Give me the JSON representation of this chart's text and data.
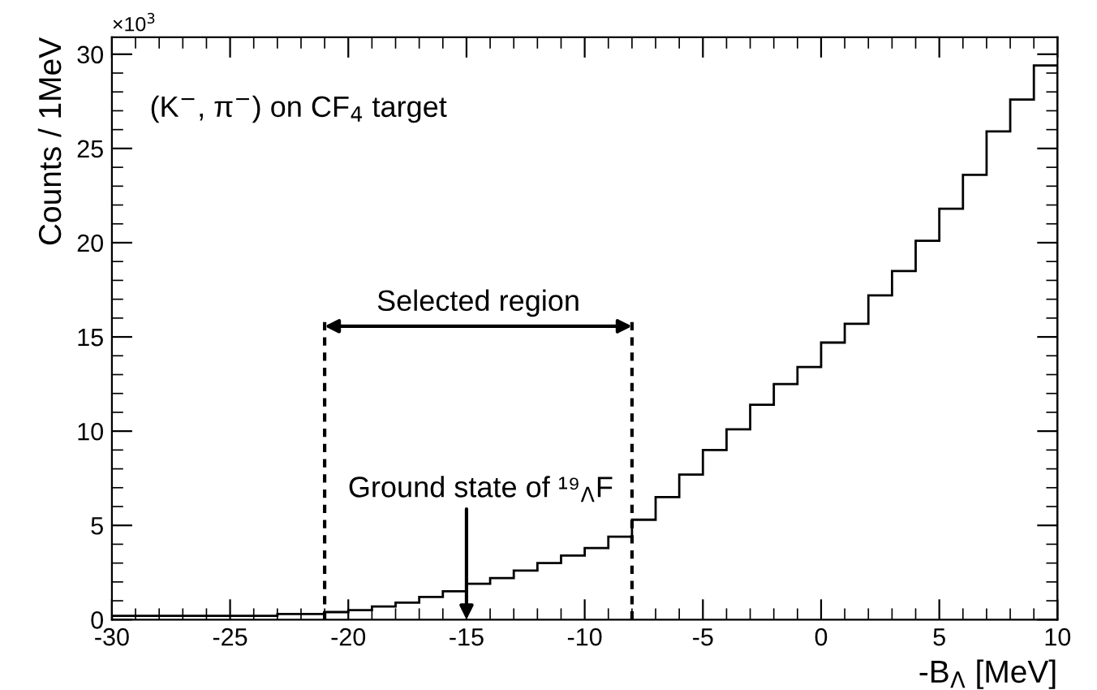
{
  "chart_data": {
    "type": "histogram",
    "xlabel": "-B$_{Λ}$ [MeV]",
    "ylabel": "Counts / 1MeV",
    "bins": [
      -30,
      -29,
      -28,
      -27,
      -26,
      -25,
      -24,
      -23,
      -22,
      -21,
      -20,
      -19,
      -18,
      -17,
      -16,
      -15,
      -14,
      -13,
      -12,
      -11,
      -10,
      -9,
      -8,
      -7,
      -6,
      -5,
      -4,
      -3,
      -2,
      -1,
      0,
      1,
      2,
      3,
      4,
      5,
      6,
      7,
      8,
      9,
      10
    ],
    "values": [
      0.2,
      0.2,
      0.2,
      0.2,
      0.2,
      0.2,
      0.2,
      0.3,
      0.3,
      0.4,
      0.5,
      0.7,
      0.9,
      1.2,
      1.5,
      1.9,
      2.2,
      2.6,
      3.0,
      3.4,
      3.8,
      4.4,
      5.3,
      6.5,
      7.7,
      9.0,
      10.1,
      11.4,
      12.5,
      13.4,
      14.7,
      15.7,
      17.2,
      18.5,
      20.1,
      21.8,
      23.6,
      25.9,
      27.6,
      29.4
    ],
    "color": "#000000",
    "xlim": [
      -30,
      10
    ],
    "ylim": [
      0,
      30.9
    ],
    "xticks": [
      -30,
      -25,
      -20,
      -15,
      -10,
      -5,
      0,
      5,
      10
    ],
    "yticks": [
      0,
      5,
      10,
      15,
      20,
      25,
      30
    ],
    "ref_lines": [
      {
        "axis": "x",
        "value": -21,
        "line_style": "dashed"
      },
      {
        "axis": "x",
        "value": -8,
        "line_style": "dashed"
      }
    ],
    "annotations": [
      "×10$^{3}$",
      "(K$^{−}$, π$^{−}$) on CF$_{4}$ target",
      {
        "text": "Ground state of ¹⁹$_{Λ}$F",
        "x": -15
      },
      "Selected region"
    ],
    "grid": false
  }
}
